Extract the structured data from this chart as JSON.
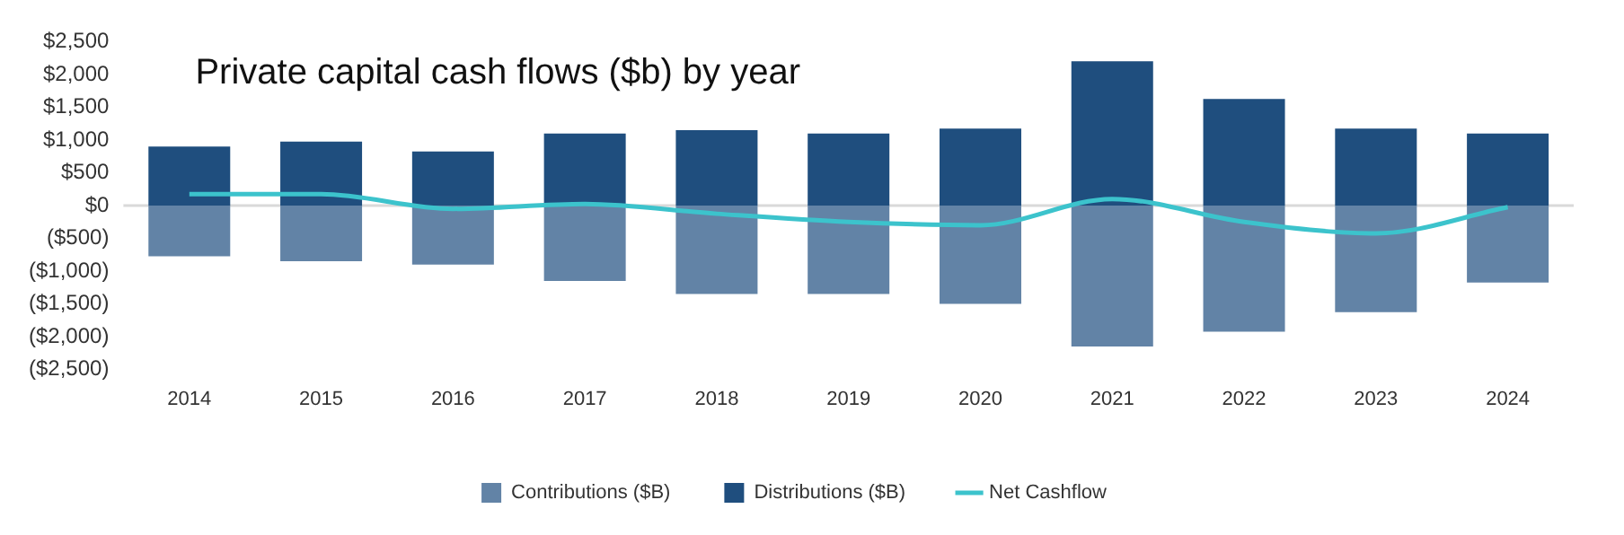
{
  "chart_data": {
    "type": "bar",
    "title": "Private capital cash flows ($b) by year",
    "stacked": true,
    "categories": [
      "2014",
      "2015",
      "2016",
      "2017",
      "2018",
      "2019",
      "2020",
      "2021",
      "2022",
      "2023",
      "2024"
    ],
    "series": [
      {
        "name": "Contributions ($B)",
        "color": "#6283a6",
        "values": [
          -775,
          -850,
          -900,
          -1150,
          -1350,
          -1350,
          -1500,
          -2150,
          -1925,
          -1625,
          -1175
        ]
      },
      {
        "name": "Distributions ($B)",
        "color": "#1f4e7e",
        "values": [
          900,
          975,
          825,
          1100,
          1150,
          1100,
          1175,
          2200,
          1625,
          1175,
          1100
        ]
      },
      {
        "name": "Net Cashflow",
        "type": "line",
        "color": "#3cc3cc",
        "marker": "none",
        "values": [
          175,
          175,
          -50,
          25,
          -125,
          -250,
          -300,
          100,
          -250,
          -425,
          -25
        ]
      }
    ],
    "ylim": [
      -2500,
      2500
    ],
    "yticks": [
      {
        "value": -2500,
        "label": "($2,500)"
      },
      {
        "value": -2000,
        "label": "($2,000)"
      },
      {
        "value": -1500,
        "label": "($1,500)"
      },
      {
        "value": -1000,
        "label": "($1,000)"
      },
      {
        "value": -500,
        "label": "($500)"
      },
      {
        "value": 0,
        "label": "$0"
      },
      {
        "value": 500,
        "label": "$500"
      },
      {
        "value": 1000,
        "label": "$1,000"
      },
      {
        "value": 1500,
        "label": "$1,500"
      },
      {
        "value": 2000,
        "label": "$2,000"
      },
      {
        "value": 2500,
        "label": "$2,500"
      }
    ],
    "ref_lines": [
      {
        "axis": "y",
        "value": 0,
        "color": "#d9d9d9"
      }
    ],
    "grid": false,
    "legend": "bottom"
  }
}
